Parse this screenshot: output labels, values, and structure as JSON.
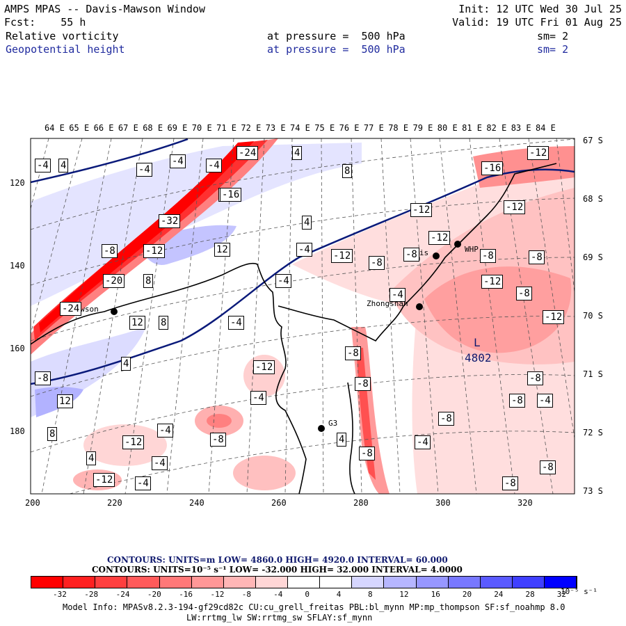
{
  "header": {
    "left_title": "AMPS MPAS -- Davis-Mawson Window",
    "forecast": "Fcst:    55 h",
    "field1": "Relative vorticity",
    "field2": "Geopotential height",
    "init": "Init: 12 UTC Wed 30 Jul 25",
    "valid": "Valid: 19 UTC Fri 01 Aug 25",
    "pressure1": "at pressure =  500 hPa",
    "pressure2": "at pressure =  500 hPa",
    "sm1": "sm= 2",
    "sm2": "sm= 2"
  },
  "map": {
    "lon_labels": [
      "64 E",
      "65 E",
      "66 E",
      "67 E",
      "68 E",
      "69 E",
      "70 E",
      "71 E",
      "72 E",
      "73 E",
      "74 E",
      "75 E",
      "76 E",
      "77 E",
      "78 E",
      "79 E",
      "80 E",
      "81 E",
      "82 E",
      "83 E",
      "84 E"
    ],
    "lat_labels": [
      "67 S",
      "68 S",
      "69 S",
      "70 S",
      "71 S",
      "72 S",
      "73 S"
    ],
    "x_ticks": [
      "200",
      "220",
      "240",
      "260",
      "280",
      "300",
      "320"
    ],
    "y_ticks": [
      "120",
      "140",
      "160",
      "180"
    ],
    "stations": [
      {
        "name": "Davis",
        "label": "Davis"
      },
      {
        "name": "WHP",
        "label": "WHP"
      },
      {
        "name": "Zhongshan",
        "label": "Zhongshan"
      },
      {
        "name": "G3",
        "label": "G3"
      },
      {
        "name": "Mawson",
        "label": "Mawson"
      }
    ],
    "low_center": {
      "symbol": "L",
      "value": "4802"
    },
    "contour_labels": [
      "-24",
      "4",
      "-12",
      "-16",
      "-4",
      "-4",
      "-4",
      "4",
      "-16",
      "8",
      "-12",
      "-12",
      "-16",
      "-32",
      "-12",
      "12",
      "-8",
      "-12",
      "-8",
      "4",
      "-4",
      "-12",
      "-8",
      "-8",
      "-12",
      "-4",
      "-4",
      "-8",
      "-20",
      "8",
      "-8",
      "-4",
      "-24",
      "12",
      "8",
      "-12",
      "-12",
      "-4",
      "-8",
      "-8",
      "-12",
      "4",
      "-8",
      "-8",
      "12",
      "8",
      "-4",
      "-8",
      "-4",
      "4",
      "-8",
      "-4",
      "-12",
      "-4",
      "-8",
      "-4",
      "4",
      "-8",
      "-12",
      "-4",
      "-8",
      "-8"
    ]
  },
  "footer": {
    "contours1": "CONTOURS:  UNITS=m  LOW=   4860.0         HIGH=  4920.0        INTERVAL=    60.000",
    "contours2": "CONTOURS:  UNITS=10⁻⁵ s⁻¹  LOW=  -32.000         HIGH=  32.000       INTERVAL=    4.0000",
    "colorbar_labels": [
      "-32",
      "-28",
      "-24",
      "-20",
      "-16",
      "-12",
      "-8",
      "-4",
      "0",
      "4",
      "8",
      "12",
      "16",
      "20",
      "24",
      "28",
      "32"
    ],
    "colorbar_unit": "10⁻⁵ s⁻¹",
    "colorbar_colors": [
      "#ff0000",
      "#ff2020",
      "#ff3f3f",
      "#ff5a5a",
      "#ff7878",
      "#ff9797",
      "#ffb6b6",
      "#ffd6d6",
      "#ffffff",
      "#ffffff",
      "#d6d6ff",
      "#b6b6ff",
      "#9797ff",
      "#7878ff",
      "#5a5aff",
      "#3f3fff",
      "#0000ff"
    ],
    "model_info1": "Model Info: MPASv8.2.3-194-gf29cd82c CU:cu_grell_freitas PBL:bl_mynn MP:mp_thompson SF:sf_noahmp 8.0",
    "model_info2": "LW:rrtmg_lw SW:rrtmg_sw SFLAY:sf_mynn"
  }
}
